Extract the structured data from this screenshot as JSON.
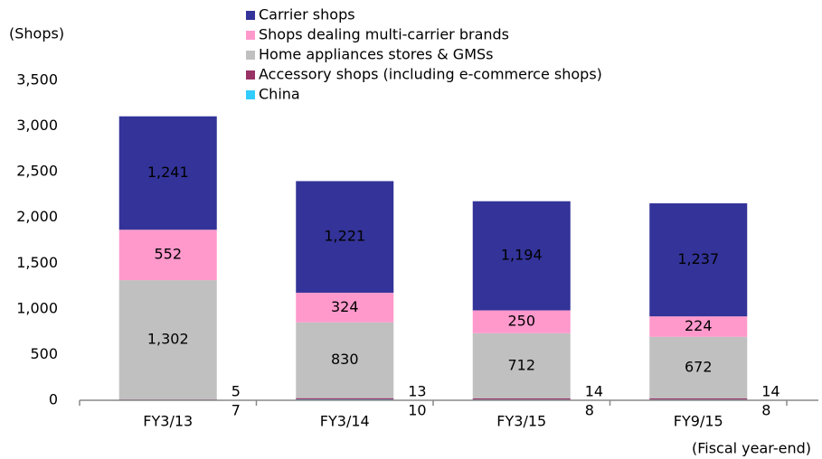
{
  "chart_data": {
    "type": "stacked_bar",
    "y_axis_label": "(Shops)",
    "x_axis_label": "(Fiscal year-end)",
    "categories": [
      "FY3/13",
      "FY3/14",
      "FY3/15",
      "FY9/15"
    ],
    "series": [
      {
        "name": "China",
        "color": "#33ccff",
        "values": [
          7,
          10,
          8,
          8
        ]
      },
      {
        "name": "Accessory shops (including e-commerce shops)",
        "color": "#993366",
        "values": [
          5,
          13,
          14,
          14
        ]
      },
      {
        "name": "Home appliances stores & GMSs",
        "color": "#c0c0c0",
        "values": [
          1302,
          830,
          712,
          672
        ],
        "value_labels": [
          "1,302",
          "830",
          "712",
          "672"
        ]
      },
      {
        "name": "Shops dealing multi-carrier brands",
        "color": "#ff99cc",
        "values": [
          552,
          324,
          250,
          224
        ]
      },
      {
        "name": "Carrier shops",
        "color": "#333399",
        "values": [
          1241,
          1221,
          1194,
          1237
        ],
        "value_labels": [
          "1,241",
          "1,221",
          "1,194",
          "1,237"
        ]
      }
    ],
    "ylim": [
      0,
      3500
    ],
    "yticks": [
      0,
      500,
      {
        "value": 1000,
        "label": "1,000"
      },
      {
        "value": 1500,
        "label": "1,500"
      },
      {
        "value": 2000,
        "label": "2,000"
      },
      {
        "value": 2500,
        "label": "2,500"
      },
      {
        "value": 3000,
        "label": "3,000"
      },
      {
        "value": 3500,
        "label": "3,500"
      }
    ]
  }
}
